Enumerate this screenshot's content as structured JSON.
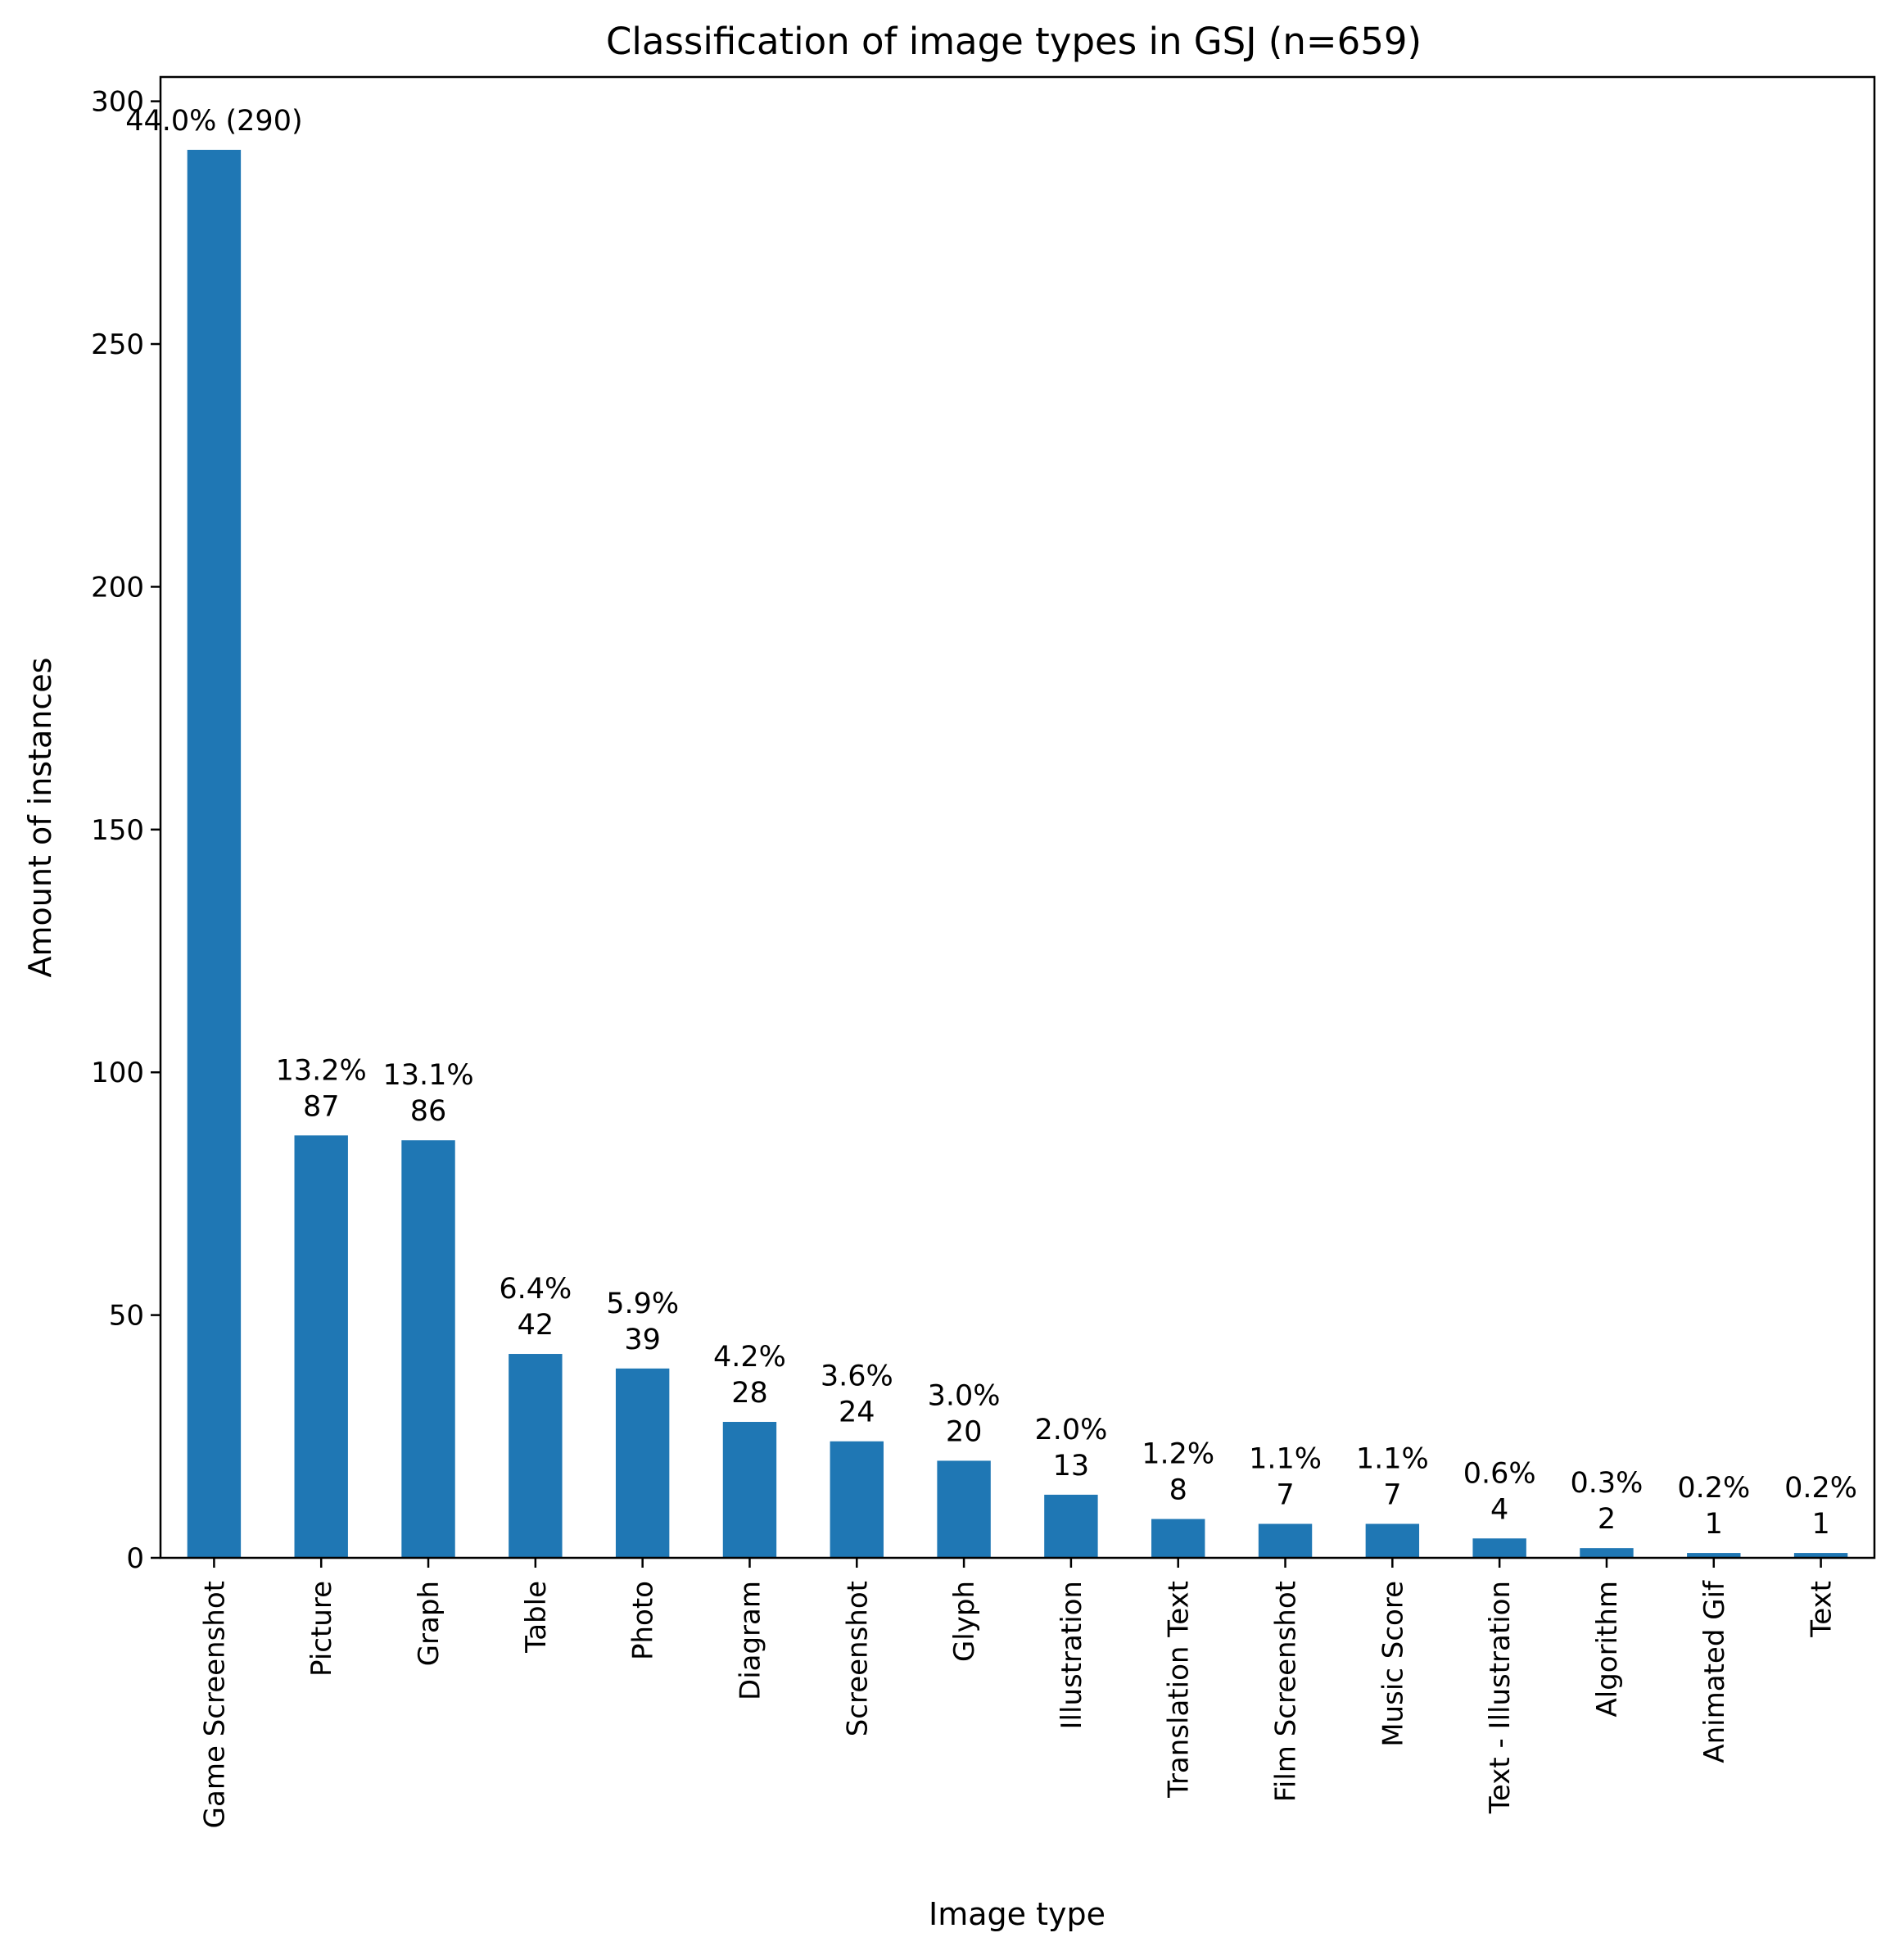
{
  "chart_data": {
    "type": "bar",
    "title": "Classification of image types in GSJ (n=659)",
    "xlabel": "Image type",
    "ylabel": "Amount of instances",
    "ylim": [
      0,
      305
    ],
    "yticks": [
      0,
      50,
      100,
      150,
      200,
      250,
      300
    ],
    "grid": false,
    "bar_color": "#1f77b4",
    "categories": [
      "Game Screenshot",
      "Picture",
      "Graph",
      "Table",
      "Photo",
      "Diagram",
      "Screenshot",
      "Glyph",
      "Illustration",
      "Translation Text",
      "Film Screenshot",
      "Music Score",
      "Text - Illustration",
      "Algorithm",
      "Animated Gif",
      "Text"
    ],
    "values": [
      290,
      87,
      86,
      42,
      39,
      28,
      24,
      20,
      13,
      8,
      7,
      7,
      4,
      2,
      1,
      1
    ],
    "bar_labels": [
      [
        "44.0% (290)"
      ],
      [
        "13.2%",
        "87"
      ],
      [
        "13.1%",
        "86"
      ],
      [
        "6.4%",
        "42"
      ],
      [
        "5.9%",
        "39"
      ],
      [
        "4.2%",
        "28"
      ],
      [
        "3.6%",
        "24"
      ],
      [
        "3.0%",
        "20"
      ],
      [
        "2.0%",
        "13"
      ],
      [
        "1.2%",
        "8"
      ],
      [
        "1.1%",
        "7"
      ],
      [
        "1.1%",
        "7"
      ],
      [
        "0.6%",
        "4"
      ],
      [
        "0.3%",
        "2"
      ],
      [
        "0.2%",
        "1"
      ],
      [
        "0.2%",
        "1"
      ]
    ]
  }
}
